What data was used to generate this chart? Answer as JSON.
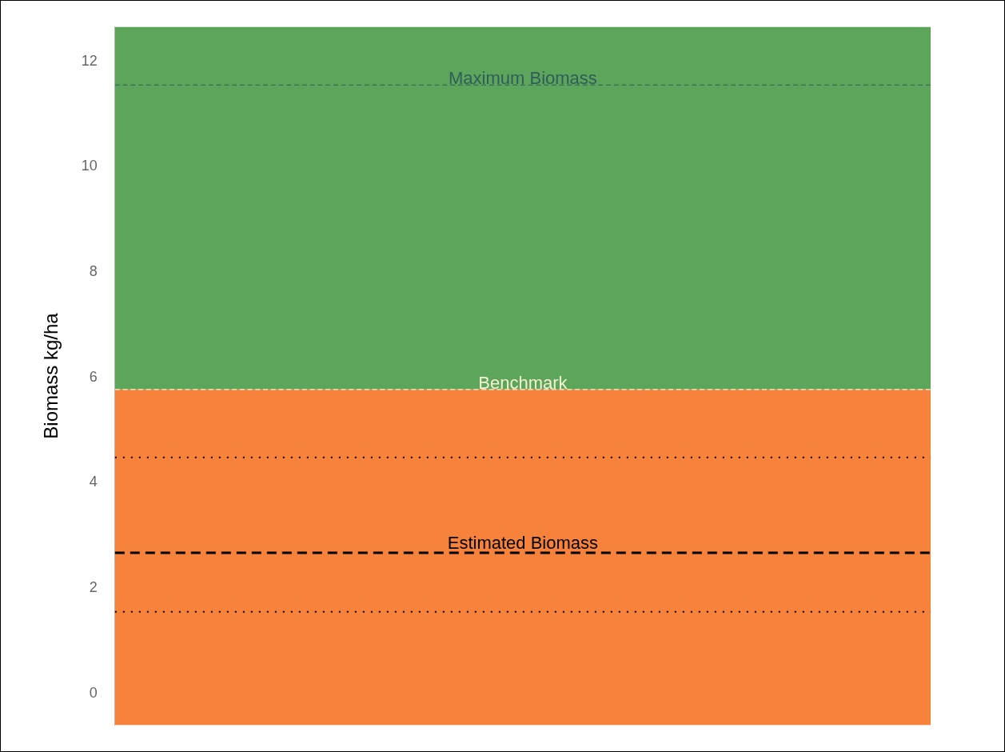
{
  "chart_data": {
    "type": "line",
    "ylabel": "Biomass kg/ha",
    "categories": [
      null,
      null
    ],
    "ylim": [
      -0.6,
      12.65
    ],
    "yticks": [
      0,
      2,
      4,
      6,
      8,
      10,
      12
    ],
    "bands": [
      {
        "axis": "y",
        "from": -0.6,
        "to": 5.77,
        "color": "#f6823c"
      },
      {
        "axis": "y",
        "from": 5.77,
        "to": 12.65,
        "color": "#5ea55c"
      }
    ],
    "ref_lines": [
      {
        "axis": "y",
        "value": 11.55,
        "label": "Maximum Biomass",
        "color": "#2f5d5b",
        "line_style": "dashed"
      },
      {
        "axis": "y",
        "value": 5.77,
        "label": "Benchmark",
        "color": "#f4f1d0",
        "line_style": "dashed"
      },
      {
        "axis": "y",
        "value": 4.48,
        "color": "#000000",
        "line_style": "dotted"
      },
      {
        "axis": "y",
        "value": 2.67,
        "label": "Estimated Biomass",
        "color": "#000000",
        "line_style": "dashed"
      },
      {
        "axis": "y",
        "value": 1.55,
        "color": "#000000",
        "line_style": "dotted"
      }
    ],
    "legend": false,
    "tick_labels": "y"
  }
}
